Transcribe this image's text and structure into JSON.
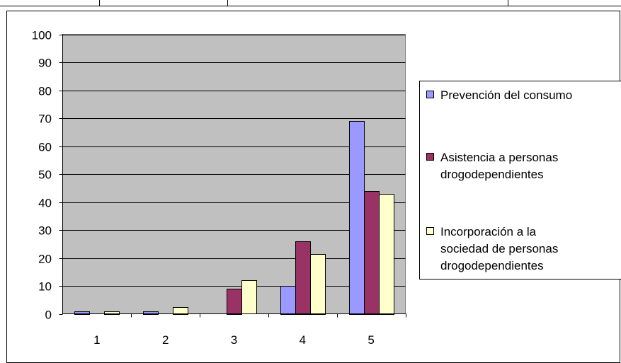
{
  "chart_data": {
    "type": "bar",
    "categories": [
      "1",
      "2",
      "3",
      "4",
      "5"
    ],
    "series": [
      {
        "name": "Prevención del consumo",
        "values": [
          1,
          1,
          0,
          10,
          69
        ],
        "color": "#9999FF"
      },
      {
        "name": "Asistencia a personas drogodependientes",
        "values": [
          0,
          0,
          9,
          26,
          44
        ],
        "color": "#993366"
      },
      {
        "name": "Incorporación a la sociedad de personas drogodependientes",
        "values": [
          1,
          2.5,
          12,
          21.5,
          43
        ],
        "color": "#FFFFCC"
      }
    ],
    "yticks": [
      "0",
      "10",
      "20",
      "30",
      "40",
      "50",
      "60",
      "70",
      "80",
      "90",
      "100"
    ],
    "ylim": [
      0,
      100
    ],
    "grid": true,
    "plot_background": "#C0C0C0",
    "legend_position": "right",
    "legend": [
      [
        "Prevención del consumo"
      ],
      [
        "Asistencia a personas",
        "drogodependientes"
      ],
      [
        "Incorporación a la",
        "sociedad de personas",
        "drogodependientes"
      ]
    ]
  }
}
